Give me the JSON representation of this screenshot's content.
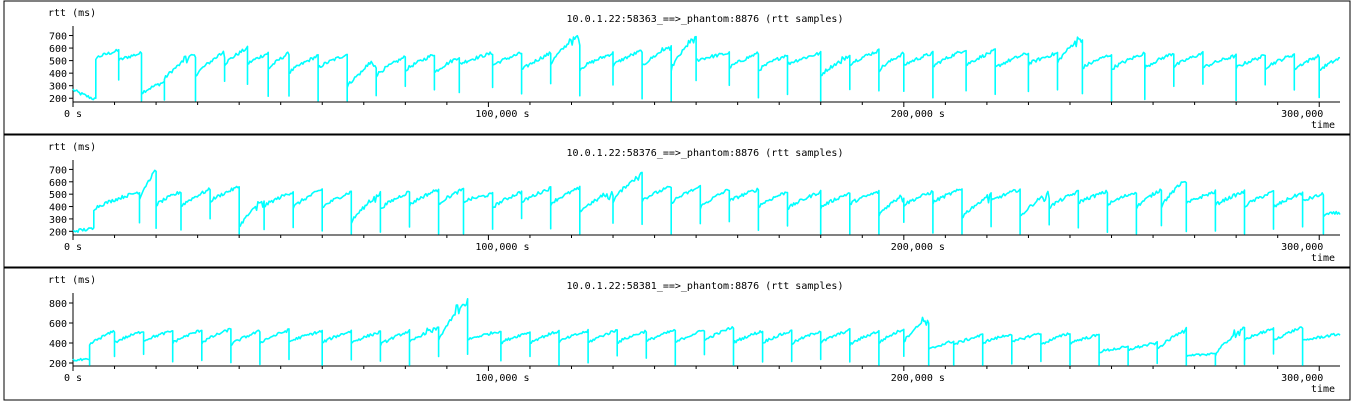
{
  "chart_data": [
    {
      "type": "scatter",
      "title": "10.0.1.22:58363_==>_phantom:8876 (rtt samples)",
      "ylabel": "rtt (ms)",
      "xlabel": "time",
      "xlim": [
        0,
        305000
      ],
      "ylim": [
        170,
        760
      ],
      "yticks": [
        200,
        300,
        400,
        500,
        600,
        700
      ],
      "ytick_labels": [
        "200",
        "300",
        "400",
        "500",
        "600",
        "700"
      ],
      "xticks": [
        0,
        100000,
        200000,
        300000
      ],
      "xtick_labels": [
        "0 s",
        "100,000  s",
        "200,000  s",
        "300,000"
      ],
      "series_color": "#00ffff",
      "sawtooth": [
        [
          0,
          5500,
          270,
          190
        ],
        [
          5500,
          11000,
          520,
          580
        ],
        [
          11000,
          16500,
          500,
          560
        ],
        [
          16500,
          22000,
          240,
          330
        ],
        [
          22000,
          29500,
          350,
          560
        ],
        [
          29500,
          36500,
          380,
          570
        ],
        [
          36500,
          42000,
          470,
          600
        ],
        [
          42000,
          47000,
          470,
          560
        ],
        [
          47000,
          52000,
          430,
          560
        ],
        [
          52000,
          59000,
          400,
          540
        ],
        [
          59000,
          66000,
          440,
          550
        ],
        [
          66000,
          73000,
          290,
          500
        ],
        [
          73000,
          80000,
          380,
          530
        ],
        [
          80000,
          87000,
          420,
          550
        ],
        [
          87000,
          93000,
          400,
          530
        ],
        [
          93000,
          101000,
          470,
          560
        ],
        [
          101000,
          108000,
          460,
          560
        ],
        [
          108000,
          115000,
          420,
          560
        ],
        [
          115000,
          122000,
          470,
          720
        ],
        [
          122000,
          130000,
          430,
          560
        ],
        [
          130000,
          137000,
          460,
          580
        ],
        [
          137000,
          144000,
          450,
          620
        ],
        [
          144000,
          150000,
          430,
          700
        ],
        [
          150000,
          158000,
          500,
          560
        ],
        [
          158000,
          165000,
          440,
          560
        ],
        [
          165000,
          172000,
          420,
          550
        ],
        [
          172000,
          180000,
          470,
          560
        ],
        [
          180000,
          187000,
          380,
          540
        ],
        [
          187000,
          194000,
          470,
          580
        ],
        [
          194000,
          200000,
          420,
          560
        ],
        [
          200000,
          207000,
          460,
          560
        ],
        [
          207000,
          215000,
          450,
          590
        ],
        [
          215000,
          222000,
          460,
          580
        ],
        [
          222000,
          230000,
          440,
          560
        ],
        [
          230000,
          237000,
          470,
          560
        ],
        [
          237000,
          243000,
          480,
          700
        ],
        [
          243000,
          250000,
          440,
          550
        ],
        [
          250000,
          258000,
          430,
          560
        ],
        [
          258000,
          265000,
          440,
          560
        ],
        [
          265000,
          272000,
          450,
          560
        ],
        [
          272000,
          280000,
          440,
          540
        ],
        [
          280000,
          287000,
          440,
          540
        ],
        [
          287000,
          294000,
          440,
          550
        ],
        [
          294000,
          300000,
          430,
          540
        ],
        [
          300000,
          305000,
          420,
          520
        ]
      ]
    },
    {
      "type": "scatter",
      "title": "10.0.1.22:58376_==>_phantom:8876 (rtt samples)",
      "ylabel": "rtt (ms)",
      "xlabel": "time",
      "xlim": [
        0,
        305000
      ],
      "ylim": [
        170,
        760
      ],
      "yticks": [
        200,
        300,
        400,
        500,
        600,
        700
      ],
      "ytick_labels": [
        "200",
        "300",
        "400",
        "500",
        "600",
        "700"
      ],
      "xticks": [
        0,
        100000,
        200000,
        300000
      ],
      "xtick_labels": [
        "0 s",
        "100,000  s",
        "200,000  s",
        "300,000"
      ],
      "series_color": "#00ffff",
      "sawtooth": [
        [
          0,
          5000,
          200,
          220
        ],
        [
          5000,
          16000,
          380,
          520
        ],
        [
          16000,
          20000,
          460,
          700
        ],
        [
          20000,
          26000,
          410,
          520
        ],
        [
          26000,
          33000,
          400,
          540
        ],
        [
          33000,
          40000,
          440,
          560
        ],
        [
          40000,
          46000,
          230,
          460
        ],
        [
          46000,
          53000,
          400,
          520
        ],
        [
          53000,
          60000,
          390,
          540
        ],
        [
          60000,
          67000,
          390,
          520
        ],
        [
          67000,
          74000,
          270,
          510
        ],
        [
          74000,
          81000,
          380,
          520
        ],
        [
          81000,
          88000,
          410,
          540
        ],
        [
          88000,
          94000,
          420,
          540
        ],
        [
          94000,
          101000,
          440,
          500
        ],
        [
          101000,
          108000,
          390,
          520
        ],
        [
          108000,
          115000,
          430,
          550
        ],
        [
          115000,
          122000,
          420,
          550
        ],
        [
          122000,
          130000,
          360,
          520
        ],
        [
          130000,
          137000,
          440,
          680
        ],
        [
          137000,
          144000,
          450,
          560
        ],
        [
          144000,
          151000,
          430,
          560
        ],
        [
          151000,
          158000,
          390,
          540
        ],
        [
          158000,
          165000,
          440,
          540
        ],
        [
          165000,
          172000,
          400,
          520
        ],
        [
          172000,
          180000,
          380,
          520
        ],
        [
          180000,
          187000,
          390,
          510
        ],
        [
          187000,
          194000,
          420,
          520
        ],
        [
          194000,
          200000,
          330,
          500
        ],
        [
          200000,
          207000,
          410,
          520
        ],
        [
          207000,
          214000,
          430,
          540
        ],
        [
          214000,
          221000,
          310,
          500
        ],
        [
          221000,
          228000,
          440,
          540
        ],
        [
          228000,
          235000,
          310,
          520
        ],
        [
          235000,
          242000,
          390,
          520
        ],
        [
          242000,
          249000,
          430,
          520
        ],
        [
          249000,
          256000,
          410,
          520
        ],
        [
          256000,
          262000,
          390,
          540
        ],
        [
          262000,
          268000,
          400,
          620
        ],
        [
          268000,
          275000,
          420,
          520
        ],
        [
          275000,
          282000,
          410,
          520
        ],
        [
          282000,
          289000,
          400,
          520
        ],
        [
          289000,
          296000,
          390,
          510
        ],
        [
          296000,
          301000,
          440,
          500
        ],
        [
          301000,
          305000,
          330,
          350
        ]
      ]
    },
    {
      "type": "scatter",
      "title": "10.0.1.22:58381_==>_phantom:8876 (rtt samples)",
      "ylabel": "rtt (ms)",
      "xlabel": "time",
      "xlim": [
        0,
        305000
      ],
      "ylim": [
        170,
        880
      ],
      "yticks": [
        200,
        400,
        600,
        800
      ],
      "ytick_labels": [
        "200",
        "400",
        "600",
        "800"
      ],
      "xticks": [
        0,
        100000,
        200000,
        300000
      ],
      "xtick_labels": [
        "0 s",
        "100,000  s",
        "200,000  s",
        "300,000"
      ],
      "series_color": "#00ffff",
      "sawtooth": [
        [
          0,
          4000,
          230,
          230
        ],
        [
          4000,
          10000,
          380,
          520
        ],
        [
          10000,
          17000,
          400,
          520
        ],
        [
          17000,
          24000,
          420,
          520
        ],
        [
          24000,
          31000,
          400,
          530
        ],
        [
          31000,
          38000,
          400,
          540
        ],
        [
          38000,
          45000,
          380,
          520
        ],
        [
          45000,
          52000,
          400,
          530
        ],
        [
          52000,
          60000,
          410,
          520
        ],
        [
          60000,
          67000,
          400,
          520
        ],
        [
          67000,
          74000,
          400,
          510
        ],
        [
          74000,
          81000,
          380,
          520
        ],
        [
          81000,
          88000,
          400,
          560
        ],
        [
          88000,
          95000,
          420,
          840
        ],
        [
          95000,
          103000,
          430,
          520
        ],
        [
          103000,
          110000,
          400,
          510
        ],
        [
          110000,
          117000,
          400,
          520
        ],
        [
          117000,
          124000,
          410,
          520
        ],
        [
          124000,
          131000,
          400,
          530
        ],
        [
          131000,
          138000,
          400,
          520
        ],
        [
          138000,
          145000,
          410,
          530
        ],
        [
          145000,
          152000,
          400,
          530
        ],
        [
          152000,
          159000,
          420,
          560
        ],
        [
          159000,
          166000,
          400,
          520
        ],
        [
          166000,
          173000,
          400,
          520
        ],
        [
          173000,
          180000,
          390,
          520
        ],
        [
          180000,
          187000,
          400,
          530
        ],
        [
          187000,
          194000,
          380,
          520
        ],
        [
          194000,
          200000,
          400,
          540
        ],
        [
          200000,
          206000,
          410,
          660
        ],
        [
          206000,
          212000,
          330,
          420
        ],
        [
          212000,
          219000,
          380,
          480
        ],
        [
          219000,
          226000,
          400,
          490
        ],
        [
          226000,
          233000,
          400,
          500
        ],
        [
          233000,
          240000,
          380,
          500
        ],
        [
          240000,
          247000,
          400,
          480
        ],
        [
          247000,
          254000,
          310,
          360
        ],
        [
          254000,
          261000,
          330,
          400
        ],
        [
          261000,
          268000,
          330,
          540
        ],
        [
          268000,
          275000,
          260,
          300
        ],
        [
          275000,
          282000,
          280,
          560
        ],
        [
          282000,
          289000,
          430,
          540
        ],
        [
          289000,
          296000,
          420,
          560
        ],
        [
          296000,
          305000,
          420,
          490
        ]
      ]
    }
  ]
}
